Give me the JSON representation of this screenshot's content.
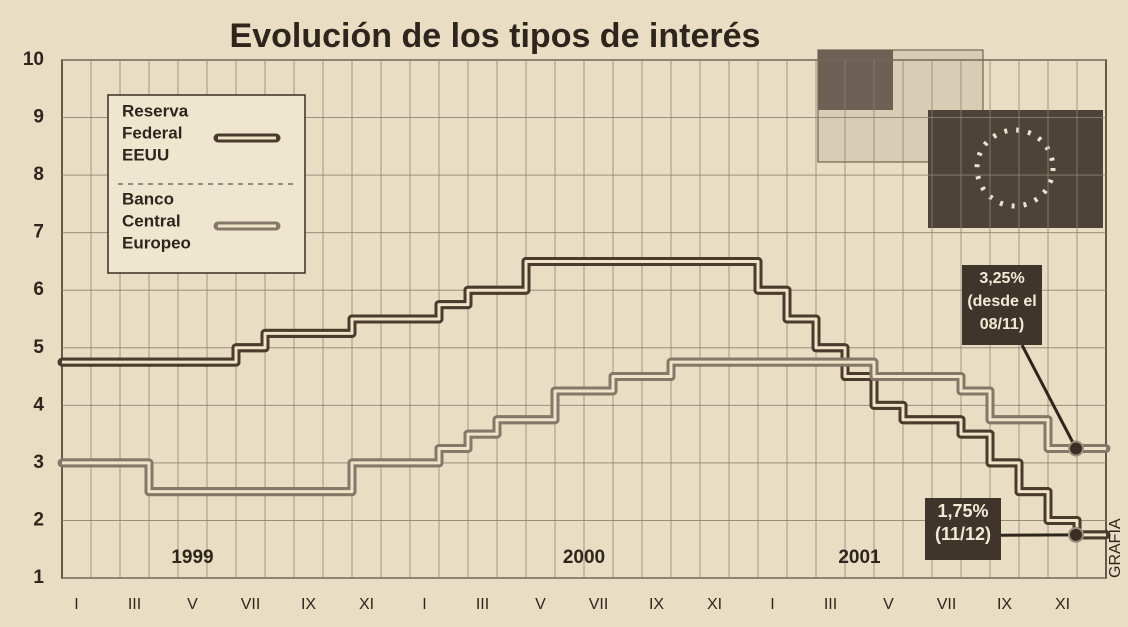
{
  "chart_data": {
    "type": "line",
    "step": true,
    "title": "Evolución de los tipos de interés",
    "categories": [
      "I",
      null,
      "III",
      null,
      "V",
      null,
      "VII",
      null,
      "IX",
      null,
      "XI",
      null,
      "I",
      null,
      "III",
      null,
      "V",
      null,
      "VII",
      null,
      "IX",
      null,
      "XI",
      null,
      "I",
      null,
      "III",
      null,
      "V",
      null,
      "VII",
      null,
      "IX",
      null,
      "XI",
      null
    ],
    "year_labels": [
      "1999",
      "2000",
      "2001"
    ],
    "series": [
      {
        "name": "Reserva Federal EEUU",
        "color": "#4a3b2c",
        "values": [
          4.75,
          4.75,
          4.75,
          4.75,
          4.75,
          4.75,
          5.0,
          5.25,
          5.25,
          5.25,
          5.5,
          5.5,
          5.5,
          5.75,
          6.0,
          6.0,
          6.5,
          6.5,
          6.5,
          6.5,
          6.5,
          6.5,
          6.5,
          6.5,
          6.0,
          5.5,
          5.0,
          4.5,
          4.0,
          3.75,
          3.75,
          3.5,
          3.0,
          2.5,
          2.0,
          1.75
        ]
      },
      {
        "name": "Banco Central Europeo",
        "color": "#857868",
        "values": [
          3.0,
          3.0,
          3.0,
          2.5,
          2.5,
          2.5,
          2.5,
          2.5,
          2.5,
          2.5,
          3.0,
          3.0,
          3.0,
          3.25,
          3.5,
          3.75,
          3.75,
          4.25,
          4.25,
          4.5,
          4.5,
          4.75,
          4.75,
          4.75,
          4.75,
          4.75,
          4.75,
          4.75,
          4.5,
          4.5,
          4.5,
          4.25,
          3.75,
          3.75,
          3.25,
          3.25
        ]
      }
    ],
    "annotations": [
      {
        "series": 1,
        "lines": [
          "3,25%",
          "(desde el",
          "08/11)"
        ]
      },
      {
        "series": 0,
        "lines": [
          "1,75%",
          "(11/12)"
        ]
      }
    ],
    "credit": "GRAFÍA",
    "ylim": [
      1,
      10
    ],
    "yticks": [
      1,
      2,
      3,
      4,
      5,
      6,
      7,
      8,
      9,
      10
    ],
    "grid": true,
    "legend": "upper left"
  }
}
